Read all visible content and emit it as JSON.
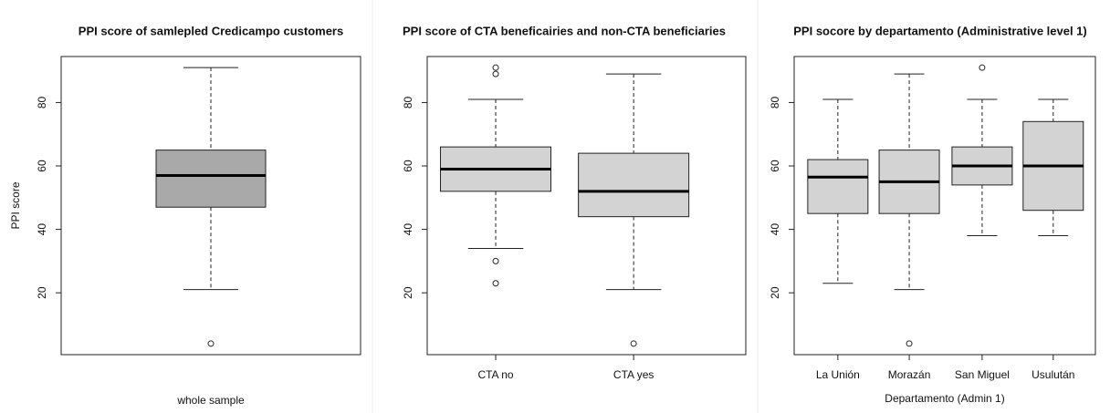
{
  "chart_data": [
    {
      "type": "box",
      "title": "PPI score of samlepled Credicampo customers",
      "ylabel": "PPI score",
      "xlabel": "whole sample",
      "categories": [
        null
      ],
      "color": "#a9a9a9",
      "boxes": [
        {
          "whisker_low": 21,
          "q1": 47,
          "median": 57,
          "q3": 65,
          "whisker_high": 91,
          "outliers": [
            4
          ]
        }
      ],
      "ylim": [
        0.5,
        94.5
      ],
      "yticks": [
        20,
        40,
        60,
        80
      ]
    },
    {
      "type": "box",
      "title": "PPI score of CTA beneficairies and non-CTA beneficiaries",
      "categories": [
        "CTA no",
        "CTA yes"
      ],
      "color": "#d3d3d3",
      "boxes": [
        {
          "whisker_low": 34,
          "q1": 52,
          "median": 59,
          "q3": 66,
          "whisker_high": 81,
          "outliers": [
            91,
            89,
            30,
            23
          ]
        },
        {
          "whisker_low": 21,
          "q1": 44,
          "median": 52,
          "q3": 64,
          "whisker_high": 89,
          "outliers": [
            4
          ]
        }
      ],
      "ylim": [
        0.5,
        94.5
      ],
      "yticks": [
        20,
        40,
        60,
        80
      ]
    },
    {
      "type": "box",
      "title": "PPI socore by departamento (Administrative level 1)",
      "xlabel": "Departamento (Admin 1)",
      "categories": [
        "La Unión",
        "Morazán",
        "San Miguel",
        "Usulután"
      ],
      "color": "#d3d3d3",
      "boxes": [
        {
          "whisker_low": 23,
          "q1": 45,
          "median": 56.5,
          "q3": 62,
          "whisker_high": 81,
          "outliers": []
        },
        {
          "whisker_low": 21,
          "q1": 45,
          "median": 55,
          "q3": 65,
          "whisker_high": 89,
          "outliers": [
            4
          ]
        },
        {
          "whisker_low": 38,
          "q1": 54,
          "median": 60,
          "q3": 66,
          "whisker_high": 81,
          "outliers": [
            91
          ]
        },
        {
          "whisker_low": 38,
          "q1": 46,
          "median": 60,
          "q3": 74,
          "whisker_high": 81,
          "outliers": []
        }
      ],
      "ylim": [
        0.5,
        94.5
      ],
      "yticks": [
        20,
        40,
        60,
        80
      ]
    }
  ]
}
